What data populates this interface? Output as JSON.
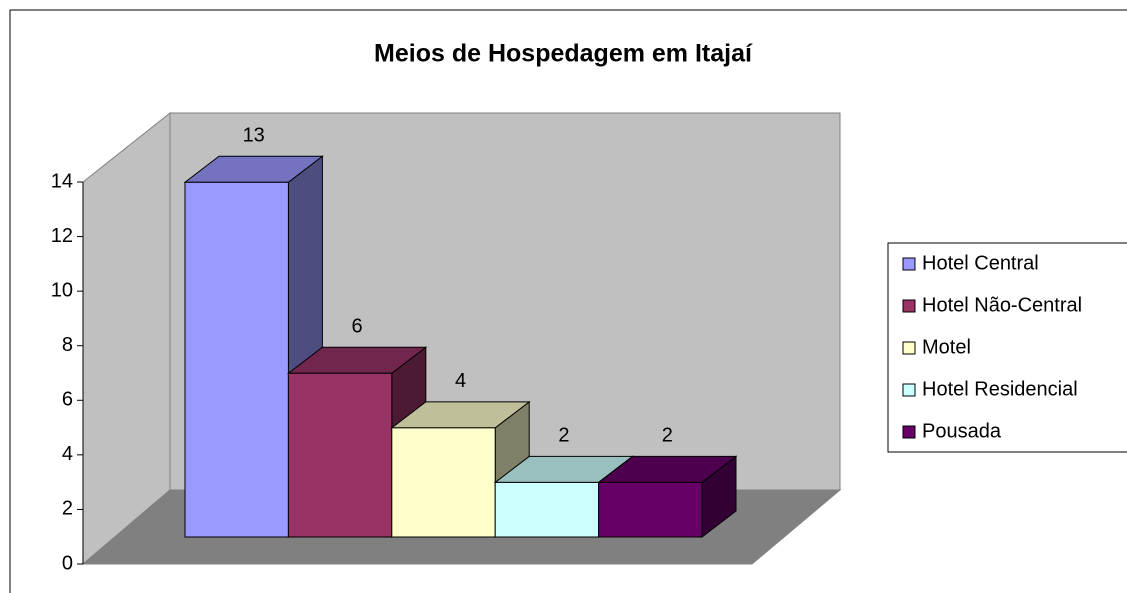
{
  "chart_data": {
    "type": "bar3d",
    "title": "Meios de Hospedagem em Itajaí",
    "series": [
      {
        "name": "Hotel Central",
        "color": "#9999ff",
        "values": [
          13
        ]
      },
      {
        "name": "Hotel Não-Central",
        "color": "#993366",
        "values": [
          6
        ]
      },
      {
        "name": "Motel",
        "color": "#ffffcc",
        "values": [
          4
        ]
      },
      {
        "name": "Hotel Residencial",
        "color": "#ccffff",
        "values": [
          2
        ]
      },
      {
        "name": "Pousada",
        "color": "#660066",
        "values": [
          2
        ]
      }
    ],
    "ylim": [
      0,
      14
    ],
    "yticks": [
      0,
      2,
      4,
      6,
      8,
      10,
      12,
      14
    ],
    "grid": false,
    "legend": "right"
  }
}
